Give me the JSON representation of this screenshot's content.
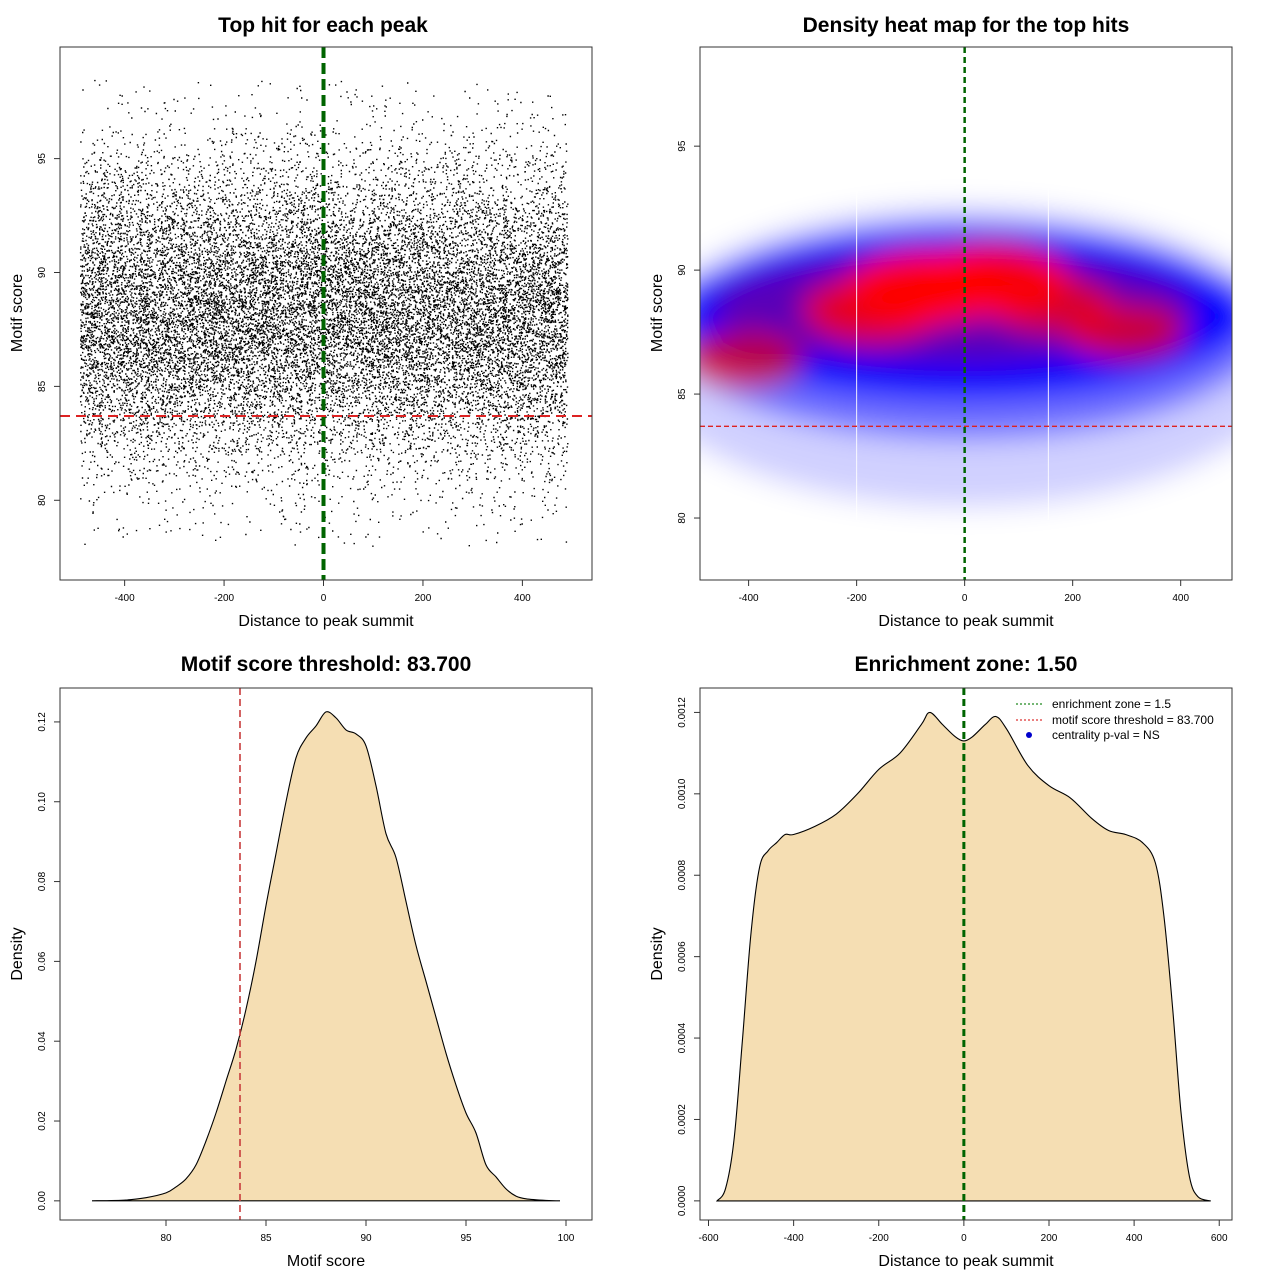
{
  "chart_data": [
    {
      "type": "scatter",
      "title": "Top hit for each peak",
      "xlabel": "Distance to peak summit",
      "ylabel": "Motif score",
      "xlim": [
        -530,
        540
      ],
      "ylim": [
        76.5,
        99.9
      ],
      "xticks": [
        -400,
        -200,
        0,
        200,
        400
      ],
      "yticks": [
        80,
        85,
        90,
        95
      ],
      "point_color": "#000000",
      "x_range": [
        -490,
        490
      ],
      "score_mean": 88.3,
      "score_sd": 3.4,
      "n_points": 20000,
      "vline": {
        "x": 0,
        "color": "#006400"
      },
      "hline": {
        "y": 83.7,
        "color": "#dd2222"
      }
    },
    {
      "type": "heatmap",
      "title": "Density heat map for the top hits",
      "xlabel": "Distance to peak summit",
      "ylabel": "Motif score",
      "xlim": [
        -490,
        495
      ],
      "ylim": [
        77.5,
        99.0
      ],
      "xticks": [
        -400,
        -200,
        0,
        200,
        400
      ],
      "yticks": [
        80,
        85,
        90,
        95
      ],
      "colors": {
        "low": "#ffffff",
        "mid": "#0000ff",
        "high": "#ff0000"
      },
      "hotspots": [
        {
          "x": -70,
          "y": 89.3,
          "weight": 1.0
        },
        {
          "x": 50,
          "y": 89.6,
          "weight": 0.95
        },
        {
          "x": -170,
          "y": 88.4,
          "weight": 0.75
        },
        {
          "x": -410,
          "y": 86.4,
          "weight": 0.5
        },
        {
          "x": 300,
          "y": 87.5,
          "weight": 0.5
        },
        {
          "x": 160,
          "y": 88.6,
          "weight": 0.55
        }
      ],
      "white_vlines": [
        -200,
        155
      ],
      "vline": {
        "x": 0,
        "color": "#006400"
      },
      "hline": {
        "y": 83.7,
        "color": "#dd2222"
      }
    },
    {
      "type": "area",
      "title": "Motif score threshold: 83.700",
      "xlabel": "Motif score",
      "ylabel": "Density",
      "xlim": [
        74.7,
        101.3
      ],
      "ylim": [
        -0.0048,
        0.1285
      ],
      "xticks": [
        80,
        85,
        90,
        95,
        100
      ],
      "yticks": [
        0.0,
        0.02,
        0.04,
        0.06,
        0.08,
        0.1,
        0.12
      ],
      "ytick_labels": [
        "0.00",
        "0.02",
        "0.04",
        "0.06",
        "0.08",
        "0.10",
        "0.12"
      ],
      "fill_color": "#f5deb3",
      "x": [
        76.3,
        78,
        79,
        80,
        80.5,
        81,
        81.5,
        82,
        82.5,
        83,
        83.5,
        84,
        84.5,
        85,
        85.5,
        86,
        86.5,
        87,
        87.5,
        88,
        88.5,
        89,
        89.5,
        90,
        90.5,
        91,
        91.5,
        92,
        92.5,
        93,
        93.5,
        94,
        94.5,
        95,
        95.5,
        96,
        96.5,
        97,
        97.5,
        98,
        99,
        99.7
      ],
      "y": [
        0.0,
        0.0002,
        0.0008,
        0.002,
        0.0035,
        0.0055,
        0.009,
        0.015,
        0.022,
        0.03,
        0.038,
        0.048,
        0.06,
        0.074,
        0.087,
        0.1,
        0.111,
        0.116,
        0.119,
        0.1225,
        0.121,
        0.118,
        0.117,
        0.114,
        0.104,
        0.092,
        0.086,
        0.075,
        0.064,
        0.055,
        0.046,
        0.037,
        0.029,
        0.022,
        0.017,
        0.009,
        0.006,
        0.003,
        0.0012,
        0.0005,
        0.0001,
        0.0
      ],
      "vline": {
        "x": 83.7,
        "color": "#c83c3c"
      }
    },
    {
      "type": "area",
      "title": "Enrichment zone: 1.50",
      "xlabel": "Distance to peak summit",
      "ylabel": "Density",
      "xlim": [
        -620,
        630
      ],
      "ylim": [
        -4.7e-05,
        0.00126
      ],
      "xticks": [
        -600,
        -400,
        -200,
        0,
        200,
        400,
        600
      ],
      "yticks": [
        0,
        0.0002,
        0.0004,
        0.0006,
        0.0008,
        0.001,
        0.0012
      ],
      "ytick_labels": [
        "0.0000",
        "0.0002",
        "0.0004",
        "0.0006",
        "0.0008",
        "0.0010",
        "0.0012"
      ],
      "fill_color": "#f5deb3",
      "x": [
        -580,
        -560,
        -540,
        -520,
        -500,
        -480,
        -460,
        -440,
        -420,
        -400,
        -350,
        -300,
        -250,
        -200,
        -150,
        -100,
        -80,
        -50,
        -20,
        0,
        20,
        50,
        75,
        100,
        150,
        200,
        250,
        300,
        340,
        380,
        420,
        450,
        470,
        490,
        510,
        530,
        550,
        580
      ],
      "y": [
        0.0,
        3e-05,
        0.00015,
        0.0004,
        0.00066,
        0.00082,
        0.00086,
        0.00088,
        0.0009,
        0.0009,
        0.00092,
        0.00095,
        0.001,
        0.00106,
        0.0011,
        0.00117,
        0.0012,
        0.00117,
        0.00114,
        0.00113,
        0.00114,
        0.00117,
        0.00119,
        0.00116,
        0.00107,
        0.00102,
        0.00099,
        0.00094,
        0.00091,
        0.0009,
        0.00088,
        0.00083,
        0.0007,
        0.00048,
        0.00022,
        6e-05,
        1e-05,
        0.0
      ],
      "vline": {
        "x": 0,
        "color": "#006400"
      },
      "legend": {
        "position": "top-right",
        "entries": [
          {
            "label": "enrichment zone = 1.5",
            "color": "#228b22",
            "kind": "line"
          },
          {
            "label": "motif score threshold = 83.700",
            "color": "#dd3333",
            "kind": "line"
          },
          {
            "label": "centrality p-val = NS",
            "color": "#0000cc",
            "kind": "point"
          }
        ]
      }
    }
  ]
}
